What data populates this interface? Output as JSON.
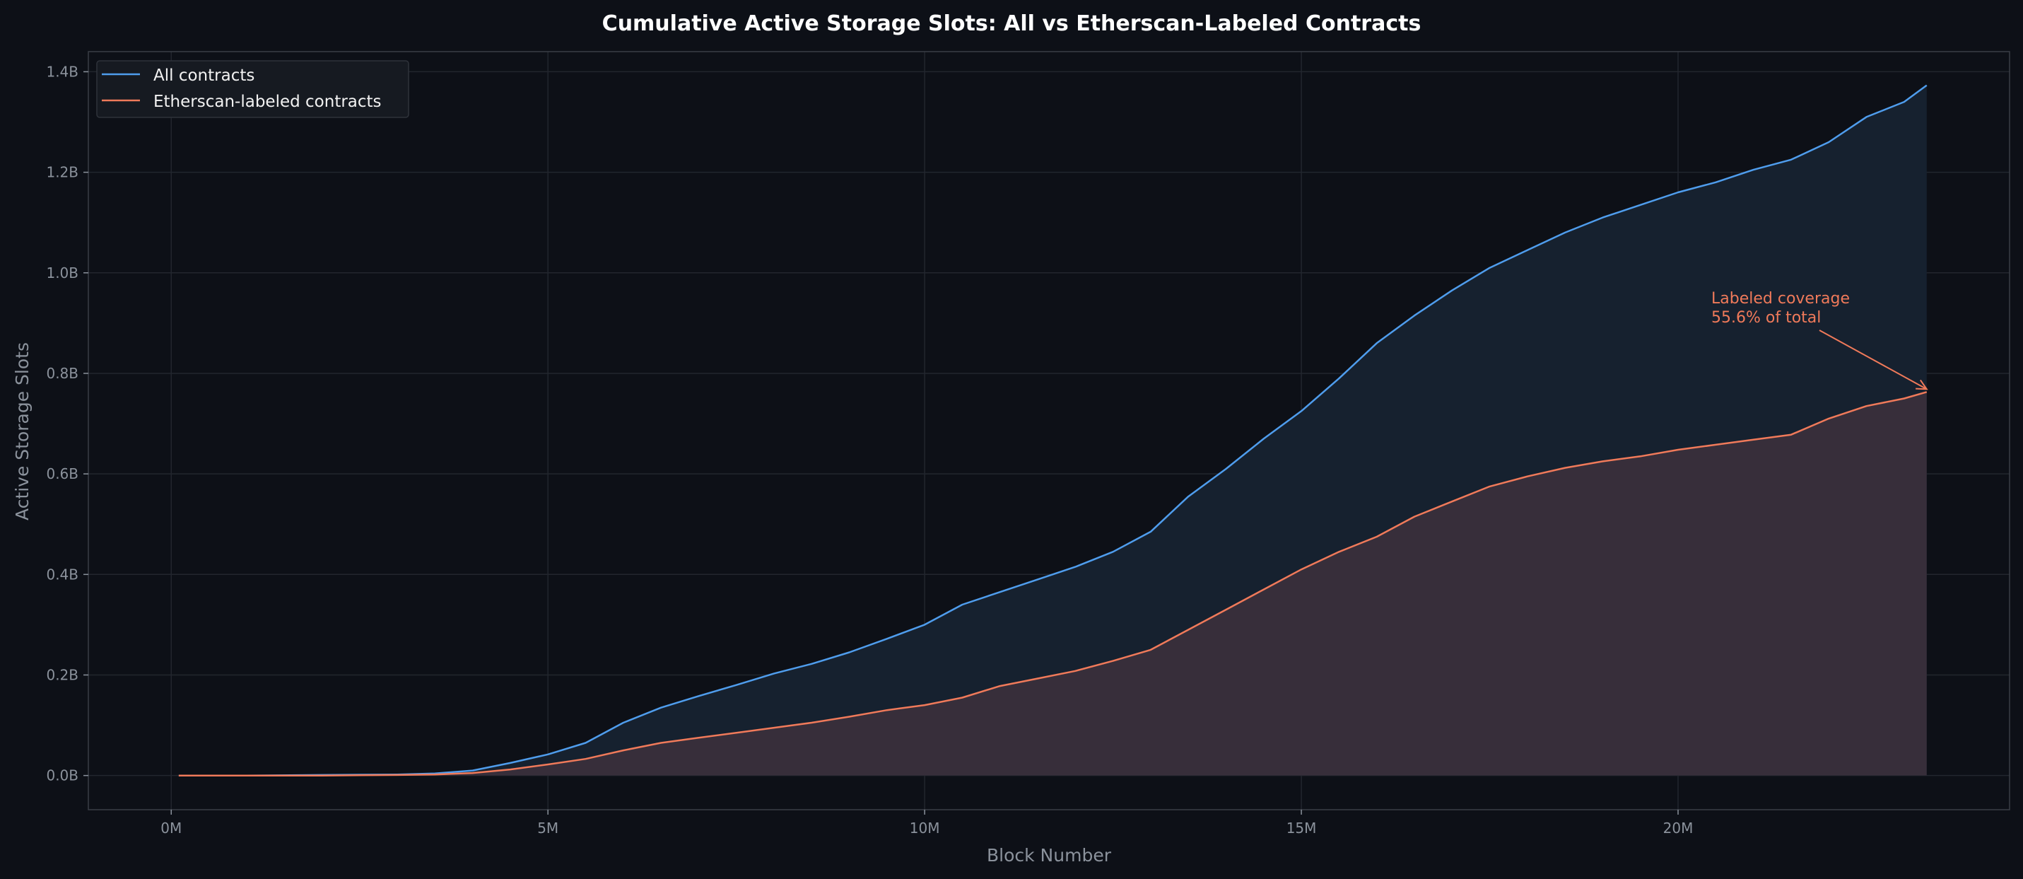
{
  "chart_data": {
    "type": "area",
    "title": "Cumulative Active Storage Slots: All vs Etherscan-Labeled Contracts",
    "xlabel": "Block Number",
    "ylabel": "Active Storage Slots",
    "x_unit": "million blocks",
    "y_unit": "billion slots",
    "xlim": [
      -1.1,
      24.4
    ],
    "ylim": [
      -0.068,
      1.44
    ],
    "grid": true,
    "legend_position": "top-left",
    "x_ticks": [
      {
        "value": 0,
        "label": "0M"
      },
      {
        "value": 5,
        "label": "5M"
      },
      {
        "value": 10,
        "label": "10M"
      },
      {
        "value": 15,
        "label": "15M"
      },
      {
        "value": 20,
        "label": "20M"
      }
    ],
    "y_ticks": [
      {
        "value": 0,
        "label": "0.0B"
      },
      {
        "value": 0.2,
        "label": "0.2B"
      },
      {
        "value": 0.4,
        "label": "0.4B"
      },
      {
        "value": 0.6,
        "label": "0.6B"
      },
      {
        "value": 0.8,
        "label": "0.8B"
      },
      {
        "value": 1.0,
        "label": "1.0B"
      },
      {
        "value": 1.2,
        "label": "1.2B"
      },
      {
        "value": 1.4,
        "label": "1.4B"
      }
    ],
    "x": [
      0.1,
      1,
      2,
      3,
      3.5,
      4,
      4.5,
      5,
      5.5,
      6,
      6.5,
      7,
      7.5,
      8,
      8.5,
      9,
      9.5,
      10,
      10.5,
      11,
      11.5,
      12,
      12.5,
      13,
      13.5,
      14,
      14.5,
      15,
      15.5,
      16,
      16.5,
      17,
      17.5,
      18,
      18.5,
      19,
      19.5,
      20,
      20.5,
      21,
      21.5,
      22,
      22.5,
      23,
      23.3
    ],
    "series": [
      {
        "name": "All contracts",
        "color": "#4f9ded",
        "fill": "#16212f",
        "values": [
          0,
          0,
          0.001,
          0.002,
          0.004,
          0.01,
          0.025,
          0.042,
          0.065,
          0.105,
          0.135,
          0.158,
          0.18,
          0.203,
          0.222,
          0.245,
          0.272,
          0.3,
          0.34,
          0.365,
          0.39,
          0.415,
          0.445,
          0.485,
          0.555,
          0.61,
          0.67,
          0.725,
          0.79,
          0.86,
          0.915,
          0.965,
          1.01,
          1.045,
          1.08,
          1.11,
          1.135,
          1.16,
          1.18,
          1.205,
          1.225,
          1.26,
          1.31,
          1.34,
          1.373
        ]
      },
      {
        "name": "Etherscan-labeled contracts",
        "color": "#f07a5a",
        "fill": "#372e3a",
        "values": [
          0,
          0,
          0,
          0.001,
          0.002,
          0.005,
          0.012,
          0.022,
          0.033,
          0.05,
          0.065,
          0.075,
          0.085,
          0.095,
          0.105,
          0.117,
          0.13,
          0.14,
          0.155,
          0.178,
          0.193,
          0.208,
          0.228,
          0.25,
          0.29,
          0.33,
          0.37,
          0.41,
          0.445,
          0.475,
          0.515,
          0.545,
          0.575,
          0.595,
          0.612,
          0.625,
          0.635,
          0.648,
          0.658,
          0.668,
          0.678,
          0.71,
          0.735,
          0.75,
          0.763
        ]
      }
    ],
    "annotation": {
      "line1": "Labeled coverage",
      "line2": "55.6% of total",
      "target_x": 23.3,
      "target_y": 0.763,
      "color": "#f07a5a"
    }
  }
}
